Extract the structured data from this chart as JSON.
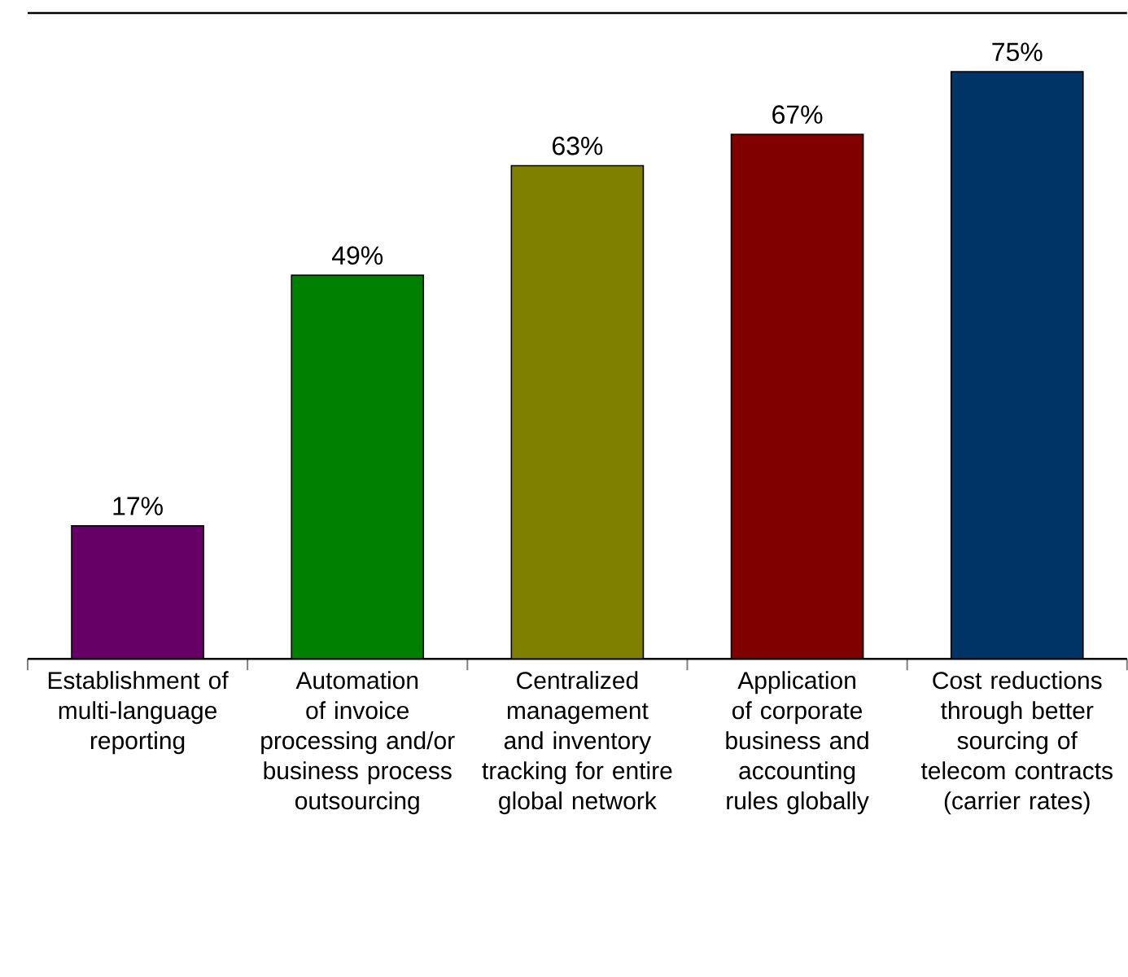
{
  "chart_data": {
    "type": "bar",
    "categories": [
      "Establishment of multi-language reporting",
      "Automation of invoice processing and/or business process outsourcing",
      "Centralized management and inventory tracking for entire global network",
      "Application of corporate business and accounting rules globally",
      "Cost reductions through better sourcing of telecom contracts (carrier rates)"
    ],
    "values": [
      17,
      49,
      63,
      67,
      75
    ],
    "value_labels": [
      "17%",
      "49%",
      "63%",
      "67%",
      "75%"
    ],
    "colors": [
      "#660066",
      "#008000",
      "#808000",
      "#800000",
      "#003366"
    ]
  }
}
